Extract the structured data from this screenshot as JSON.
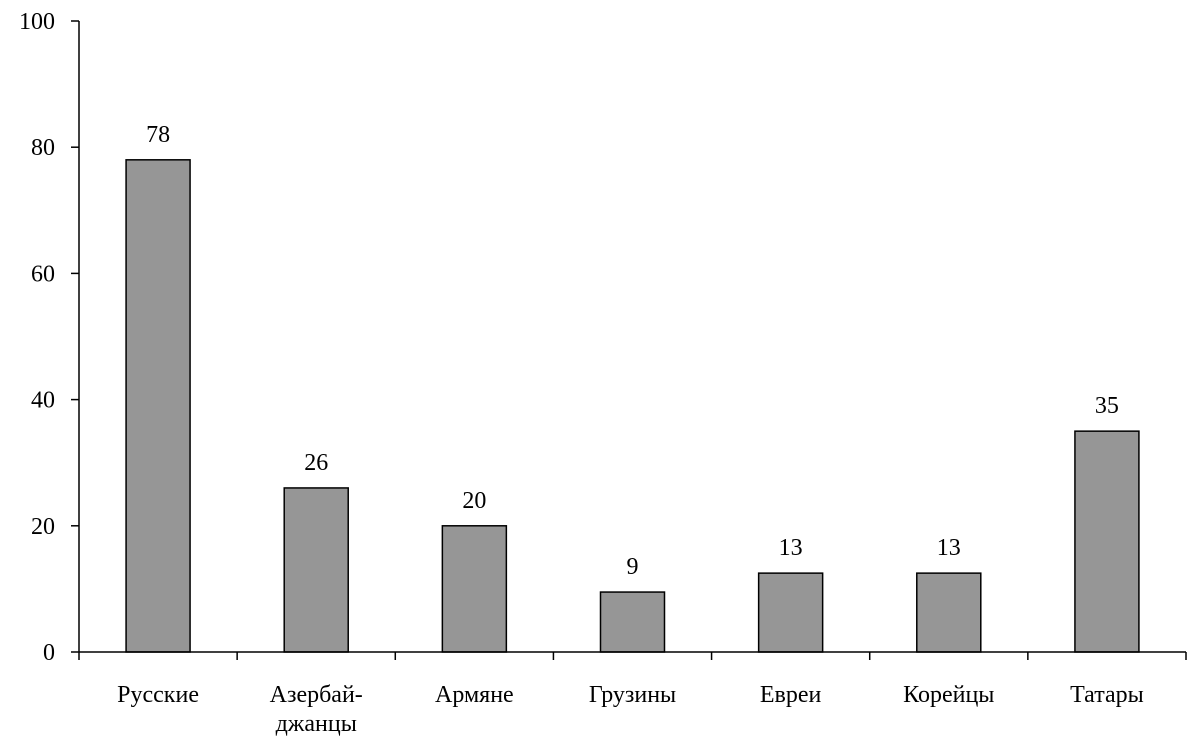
{
  "chart_data": {
    "type": "bar",
    "categories": [
      [
        "Русские"
      ],
      [
        "Азербай-",
        "джанцы"
      ],
      [
        "Армяне"
      ],
      [
        "Грузины"
      ],
      [
        "Евреи"
      ],
      [
        "Корейцы"
      ],
      [
        "Татары"
      ]
    ],
    "values": [
      78,
      26,
      20,
      9,
      13,
      13,
      35
    ],
    "data_labels": [
      "78",
      "26",
      "20",
      "9",
      "13",
      "13",
      "35"
    ],
    "value_heights": [
      78,
      26,
      20,
      9.5,
      12.5,
      12.5,
      35
    ],
    "ylim": [
      0,
      100
    ],
    "yticks": [
      0,
      20,
      40,
      60,
      80,
      100
    ],
    "grid": false,
    "legend": "none",
    "bar_color": "#969696",
    "bar_edge_color": "#000000",
    "axis_color": "#000000"
  }
}
